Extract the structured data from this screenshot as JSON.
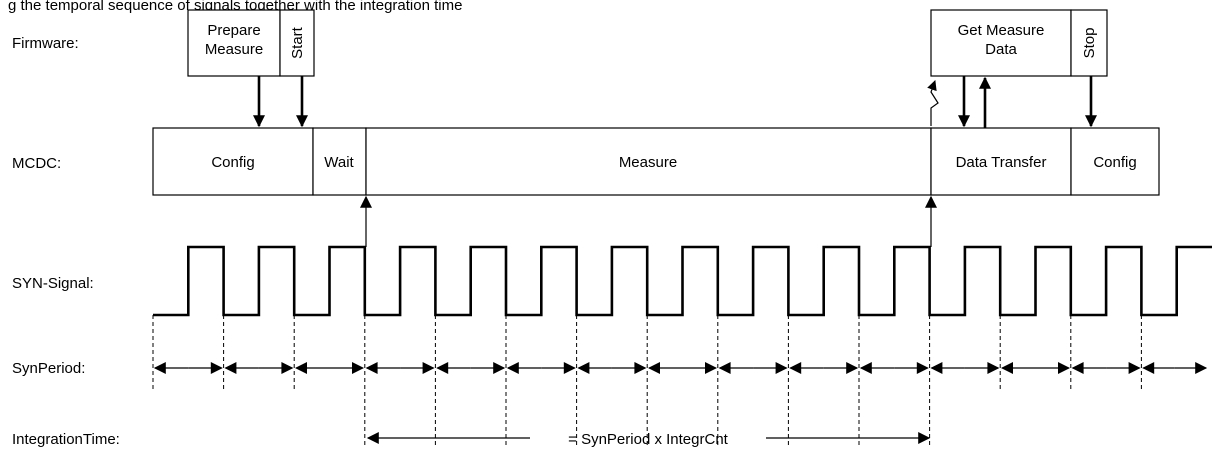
{
  "caption": "g the temporal sequence of signals together with the integration time",
  "rows": {
    "firmware": "Firmware:",
    "mcdc": "MCDC:",
    "syn_signal": "SYN-Signal:",
    "syn_period": "SynPeriod:",
    "integration_time": "IntegrationTime:"
  },
  "firmware_boxes": {
    "prepare_line1": "Prepare",
    "prepare_line2": "Measure",
    "start": "Start",
    "get_line1": "Get Measure",
    "get_line2": "Data",
    "stop": "Stop"
  },
  "mcdc_segments": {
    "config_1": "Config",
    "wait": "Wait",
    "measure": "Measure",
    "data_transfer": "Data Transfer",
    "config_2": "Config"
  },
  "integration_label": "= SynPeriod x IntegrCnt",
  "syn_signal": {
    "pulse_count": 15,
    "duty_cycle": 0.5
  }
}
